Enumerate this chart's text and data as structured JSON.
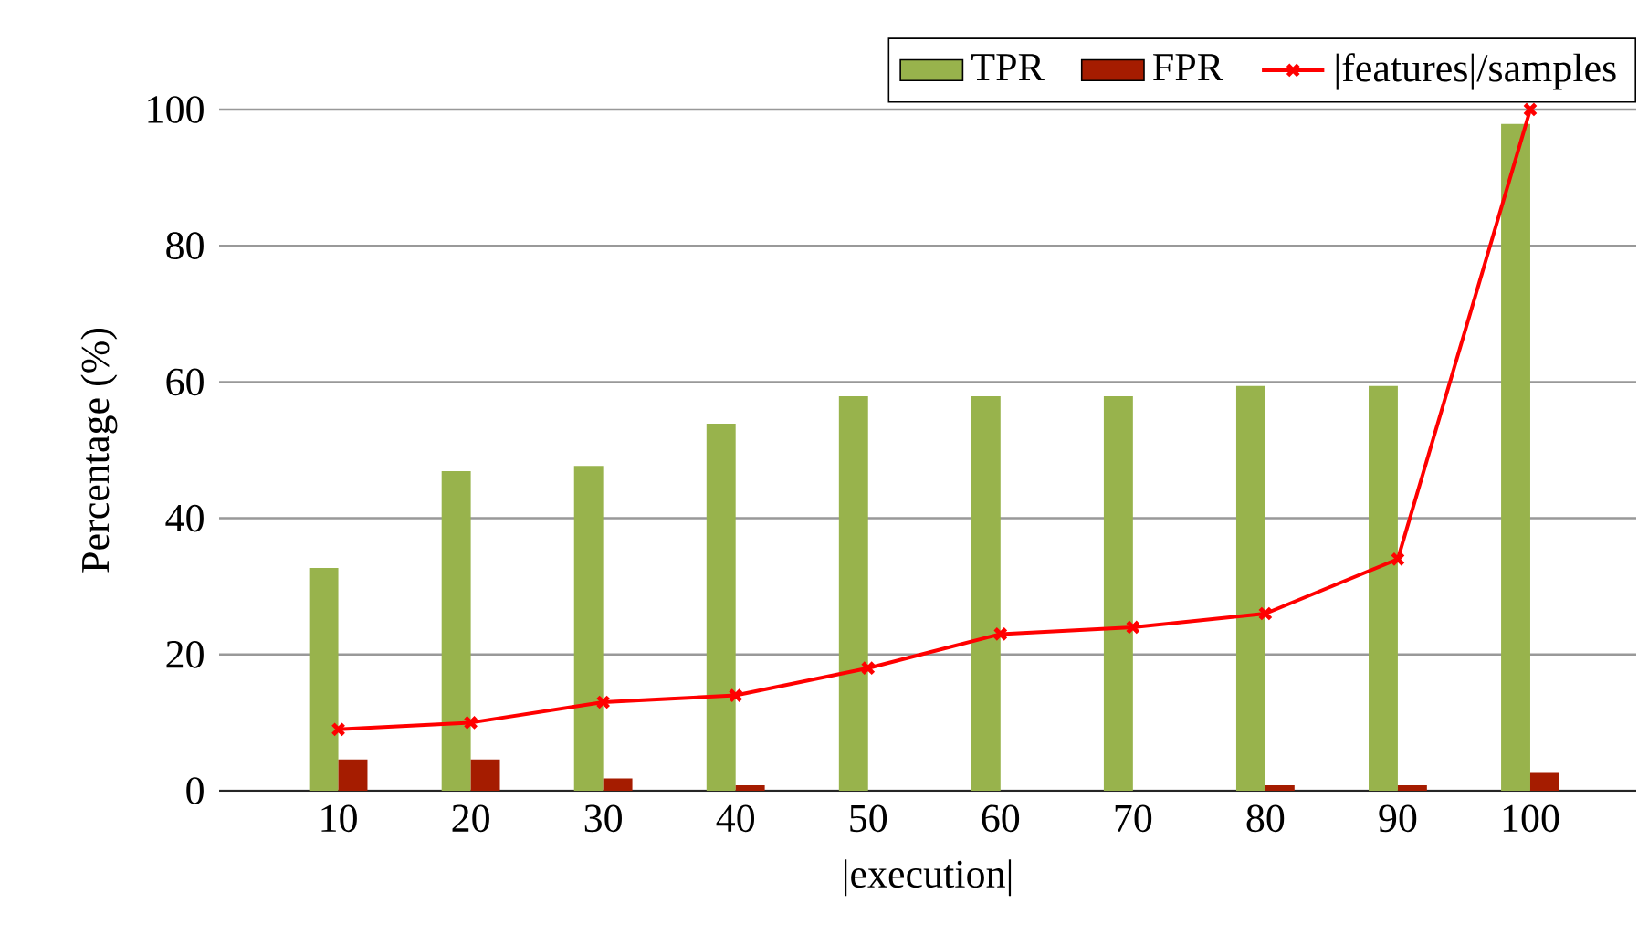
{
  "chart_data": {
    "type": "bar",
    "xlabel": "|execution|",
    "ylabel": "Percentage (%)",
    "x": [
      10,
      20,
      30,
      40,
      50,
      60,
      70,
      80,
      90,
      100
    ],
    "series": [
      {
        "name": "TPR",
        "color": "#98b34c",
        "values": [
          32.7,
          46.9,
          47.7,
          53.9,
          57.9,
          57.9,
          57.9,
          59.4,
          59.4,
          97.9
        ]
      },
      {
        "name": "FPR",
        "color": "#a51c00",
        "values": [
          4.6,
          4.6,
          1.8,
          0.8,
          0,
          0,
          0,
          0.8,
          0.8,
          2.6
        ]
      },
      {
        "name": "|features|/samples",
        "type": "line",
        "color": "#ff0000",
        "marker": "cross",
        "values": [
          9,
          10,
          13,
          14,
          18,
          23,
          24,
          26,
          34,
          100
        ]
      }
    ],
    "xlim": [
      1,
      108
    ],
    "xticks": [
      10,
      20,
      30,
      40,
      50,
      60,
      70,
      80,
      90,
      100
    ],
    "ylim": [
      0,
      100
    ],
    "yticks": [
      0,
      20,
      40,
      60,
      80,
      100
    ],
    "grid": "y",
    "legend": "top right"
  }
}
